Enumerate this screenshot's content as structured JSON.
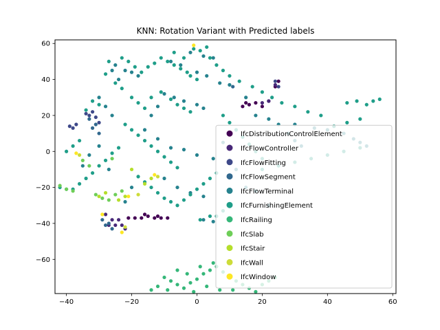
{
  "chart_data": {
    "type": "scatter",
    "title": "KNN: Rotation Variant with Predicted labels",
    "xlabel": "",
    "ylabel": "",
    "xlim": [
      -43.5,
      61
    ],
    "ylim": [
      -79,
      62
    ],
    "xticks": [
      -40,
      -20,
      0,
      20,
      40,
      60
    ],
    "yticks": [
      -60,
      -40,
      -20,
      0,
      20,
      40,
      60
    ],
    "grid": false,
    "legend_position": "lower-right",
    "series": [
      {
        "name": "IfcDistributionControlElement",
        "color": "#440154",
        "points": [
          [
            -19,
            -37
          ],
          [
            -17,
            -37
          ],
          [
            -15,
            -36
          ],
          [
            -13,
            -37
          ],
          [
            -11,
            -37
          ],
          [
            -9,
            -37
          ],
          [
            -21,
            -37
          ],
          [
            14,
            25
          ],
          [
            16,
            26
          ],
          [
            18,
            27
          ],
          [
            20,
            25
          ],
          [
            15,
            27
          ],
          [
            22,
            28
          ],
          [
            24,
            36
          ],
          [
            25,
            39
          ],
          [
            -16,
            -35
          ],
          [
            -12,
            -36
          ]
        ]
      },
      {
        "name": "IfcFlowController",
        "color": "#482878",
        "points": [
          [
            -28,
            -35
          ],
          [
            -26,
            -38
          ],
          [
            -25,
            -41
          ],
          [
            -23,
            -41
          ],
          [
            -22,
            -43
          ],
          [
            20,
            27
          ],
          [
            22,
            28
          ],
          [
            24,
            37
          ],
          [
            -27,
            -41
          ],
          [
            -24,
            -38
          ]
        ]
      },
      {
        "name": "IfcFlowFitting",
        "color": "#3e4989",
        "points": [
          [
            -39,
            14
          ],
          [
            -37,
            15
          ],
          [
            -34,
            21
          ],
          [
            -32,
            22
          ],
          [
            -31,
            19
          ],
          [
            -30,
            16
          ],
          [
            24,
            39
          ],
          [
            25,
            36
          ],
          [
            -38,
            13
          ],
          [
            -33,
            20
          ]
        ]
      },
      {
        "name": "IfcFlowSegment",
        "color": "#31688e",
        "points": [
          [
            -33,
            18
          ],
          [
            -32,
            13
          ],
          [
            -30,
            10
          ],
          [
            -29,
            -38
          ],
          [
            -28,
            -41
          ],
          [
            -26,
            -43
          ],
          [
            10,
            37
          ],
          [
            11,
            36
          ],
          [
            -31,
            15
          ],
          [
            -27,
            -40
          ]
        ]
      },
      {
        "name": "IfcFlowTerminal",
        "color": "#26828e",
        "points": [
          [
            -25,
            48
          ],
          [
            -22,
            45
          ],
          [
            -20,
            44
          ],
          [
            -18,
            42
          ],
          [
            -26,
            45
          ],
          [
            -24,
            40
          ],
          [
            -30,
            30
          ],
          [
            -28,
            25
          ],
          [
            -26,
            20
          ],
          [
            -10,
            32
          ],
          [
            -7,
            30
          ],
          [
            -4,
            28
          ],
          [
            0,
            26
          ],
          [
            2,
            24
          ],
          [
            -12,
            25
          ],
          [
            -14,
            20
          ],
          [
            -16,
            12
          ],
          [
            -12,
            7
          ],
          [
            -8,
            2
          ],
          [
            -4,
            1
          ],
          [
            0,
            -2
          ],
          [
            5,
            -4
          ],
          [
            -10,
            -15
          ],
          [
            -6,
            -20
          ],
          [
            -2,
            -23
          ],
          [
            2,
            -25
          ],
          [
            -20,
            -20
          ],
          [
            -22,
            -28
          ],
          [
            -35,
            -8
          ],
          [
            -33,
            -2
          ],
          [
            -30,
            3
          ],
          [
            -27,
            -10
          ],
          [
            2,
            -38
          ],
          [
            5,
            -39
          ],
          [
            30,
            15
          ],
          [
            36,
            13
          ],
          [
            40,
            12
          ],
          [
            45,
            10
          ],
          [
            48,
            7
          ],
          [
            50,
            5
          ],
          [
            52,
            3
          ],
          [
            5,
            52
          ],
          [
            2,
            53
          ],
          [
            -2,
            55
          ],
          [
            -8,
            50
          ],
          [
            -5,
            48
          ],
          [
            0,
            44
          ],
          [
            3,
            42
          ],
          [
            7,
            38
          ],
          [
            10,
            37
          ],
          [
            15,
            30
          ],
          [
            18,
            20
          ],
          [
            22,
            18
          ],
          [
            25,
            15
          ],
          [
            28,
            10
          ],
          [
            30,
            6
          ],
          [
            32,
            3
          ],
          [
            8,
            5
          ],
          [
            10,
            -5
          ],
          [
            12,
            -10
          ],
          [
            15,
            -20
          ],
          [
            18,
            -22
          ],
          [
            22,
            -30
          ]
        ]
      },
      {
        "name": "IfcFurnishingElement",
        "color": "#1f9e89",
        "points": [
          [
            -27,
            50
          ],
          [
            -23,
            52
          ],
          [
            -21,
            50
          ],
          [
            -19,
            47
          ],
          [
            -17,
            44
          ],
          [
            -15,
            47
          ],
          [
            -13,
            49
          ],
          [
            -11,
            52
          ],
          [
            -9,
            50
          ],
          [
            -7,
            48
          ],
          [
            -5,
            46
          ],
          [
            -3,
            44
          ],
          [
            -2,
            42
          ],
          [
            0,
            40
          ],
          [
            -28,
            43
          ],
          [
            -25,
            38
          ],
          [
            -23,
            35
          ],
          [
            -20,
            30
          ],
          [
            -18,
            27
          ],
          [
            -16,
            24
          ],
          [
            -14,
            30
          ],
          [
            -11,
            33
          ],
          [
            -8,
            29
          ],
          [
            -6,
            26
          ],
          [
            -4,
            24
          ],
          [
            -2,
            22
          ],
          [
            -22,
            15
          ],
          [
            -20,
            12
          ],
          [
            -18,
            9
          ],
          [
            -16,
            6
          ],
          [
            -14,
            3
          ],
          [
            -12,
            0
          ],
          [
            -10,
            -3
          ],
          [
            -8,
            -6
          ],
          [
            -6,
            -9
          ],
          [
            -24,
            2
          ],
          [
            -26,
            -1
          ],
          [
            -28,
            -5
          ],
          [
            -30,
            -8
          ],
          [
            -32,
            -12
          ],
          [
            -34,
            -15
          ],
          [
            -36,
            -18
          ],
          [
            -38,
            -21
          ],
          [
            -40,
            -21
          ],
          [
            -42,
            -20
          ],
          [
            -36,
            6
          ],
          [
            -38,
            3
          ],
          [
            -40,
            0
          ],
          [
            -30,
            26
          ],
          [
            -32,
            28
          ],
          [
            -34,
            23
          ],
          [
            -18,
            -14
          ],
          [
            -16,
            -17
          ],
          [
            -14,
            -20
          ],
          [
            -12,
            -23
          ],
          [
            -10,
            -26
          ],
          [
            -8,
            -28
          ],
          [
            -6,
            -30
          ],
          [
            -4,
            -27
          ],
          [
            -2,
            -24
          ],
          [
            0,
            -21
          ],
          [
            2,
            -18
          ],
          [
            4,
            -15
          ],
          [
            6,
            -12
          ],
          [
            20,
            -10
          ],
          [
            25,
            -8
          ],
          [
            30,
            -6
          ],
          [
            35,
            -4
          ],
          [
            40,
            -2
          ],
          [
            45,
            0
          ],
          [
            50,
            2
          ],
          [
            42,
            14
          ],
          [
            46,
            16
          ],
          [
            50,
            18
          ],
          [
            52,
            26
          ],
          [
            54,
            28
          ],
          [
            56,
            29
          ],
          [
            49,
            28
          ],
          [
            46,
            27
          ],
          [
            38,
            20
          ],
          [
            34,
            22
          ],
          [
            30,
            25
          ],
          [
            26,
            27
          ],
          [
            23,
            30
          ],
          [
            20,
            33
          ],
          [
            17,
            36
          ],
          [
            13,
            39
          ],
          [
            10,
            42
          ],
          [
            8,
            45
          ],
          [
            6,
            48
          ],
          [
            4,
            52
          ],
          [
            1,
            56
          ],
          [
            -1,
            57
          ],
          [
            3,
            58
          ],
          [
            -4,
            52
          ],
          [
            -7,
            55
          ],
          [
            8,
            20
          ],
          [
            10,
            16
          ],
          [
            12,
            12
          ],
          [
            14,
            8
          ],
          [
            16,
            4
          ],
          [
            18,
            0
          ],
          [
            20,
            -4
          ],
          [
            10,
            -30
          ],
          [
            8,
            -33
          ],
          [
            6,
            -36
          ],
          [
            4,
            -36
          ],
          [
            1,
            -38
          ]
        ]
      },
      {
        "name": "IfcRailing",
        "color": "#35b779",
        "points": [
          [
            -10,
            -70
          ],
          [
            -8,
            -72
          ],
          [
            -6,
            -74
          ],
          [
            -4,
            -76
          ],
          [
            -2,
            -73
          ],
          [
            0,
            -71
          ],
          [
            2,
            -68
          ],
          [
            4,
            -66
          ],
          [
            6,
            -64
          ],
          [
            8,
            -67
          ],
          [
            10,
            -69
          ],
          [
            12,
            -72
          ],
          [
            14,
            -74
          ],
          [
            16,
            -76
          ],
          [
            18,
            -78
          ],
          [
            -12,
            -75
          ],
          [
            -14,
            -77
          ],
          [
            -6,
            -66
          ],
          [
            -3,
            -68
          ],
          [
            1,
            -64
          ],
          [
            5,
            -62
          ],
          [
            3,
            -75
          ],
          [
            7,
            -77
          ],
          [
            11,
            -77
          ],
          [
            -1,
            -78
          ],
          [
            -9,
            -77
          ],
          [
            20,
            -74
          ],
          [
            22,
            -72
          ],
          [
            24,
            -70
          ]
        ]
      },
      {
        "name": "IfcSlab",
        "color": "#6ece58",
        "points": [
          [
            -42,
            -19
          ],
          [
            -40,
            -21
          ],
          [
            -38,
            -22
          ],
          [
            -31,
            -24
          ],
          [
            -29,
            -26
          ],
          [
            -27,
            -27
          ],
          [
            -25,
            -24
          ],
          [
            -23,
            -22
          ],
          [
            -33,
            -8
          ],
          [
            -35,
            -5
          ],
          [
            -26,
            -4
          ]
        ]
      },
      {
        "name": "IfcStair",
        "color": "#b5de2b",
        "points": [
          [
            -30,
            -25
          ],
          [
            -28,
            -23
          ],
          [
            -24,
            -27
          ],
          [
            -22,
            -25
          ],
          [
            -16,
            -18
          ],
          [
            -14,
            -15
          ],
          [
            -20,
            -10
          ]
        ]
      },
      {
        "name": "IfcWall",
        "color": "#cddc39",
        "points": [
          [
            -36,
            -2
          ],
          [
            -22,
            -42
          ],
          [
            -18,
            -24
          ],
          [
            -12,
            -14
          ]
        ]
      },
      {
        "name": "IfcWindow",
        "color": "#fde725",
        "points": [
          [
            -37,
            -1
          ],
          [
            -29,
            -35
          ],
          [
            -23,
            -45
          ],
          [
            -21,
            -25
          ],
          [
            -13,
            -13
          ],
          [
            -1,
            59
          ]
        ]
      }
    ]
  }
}
